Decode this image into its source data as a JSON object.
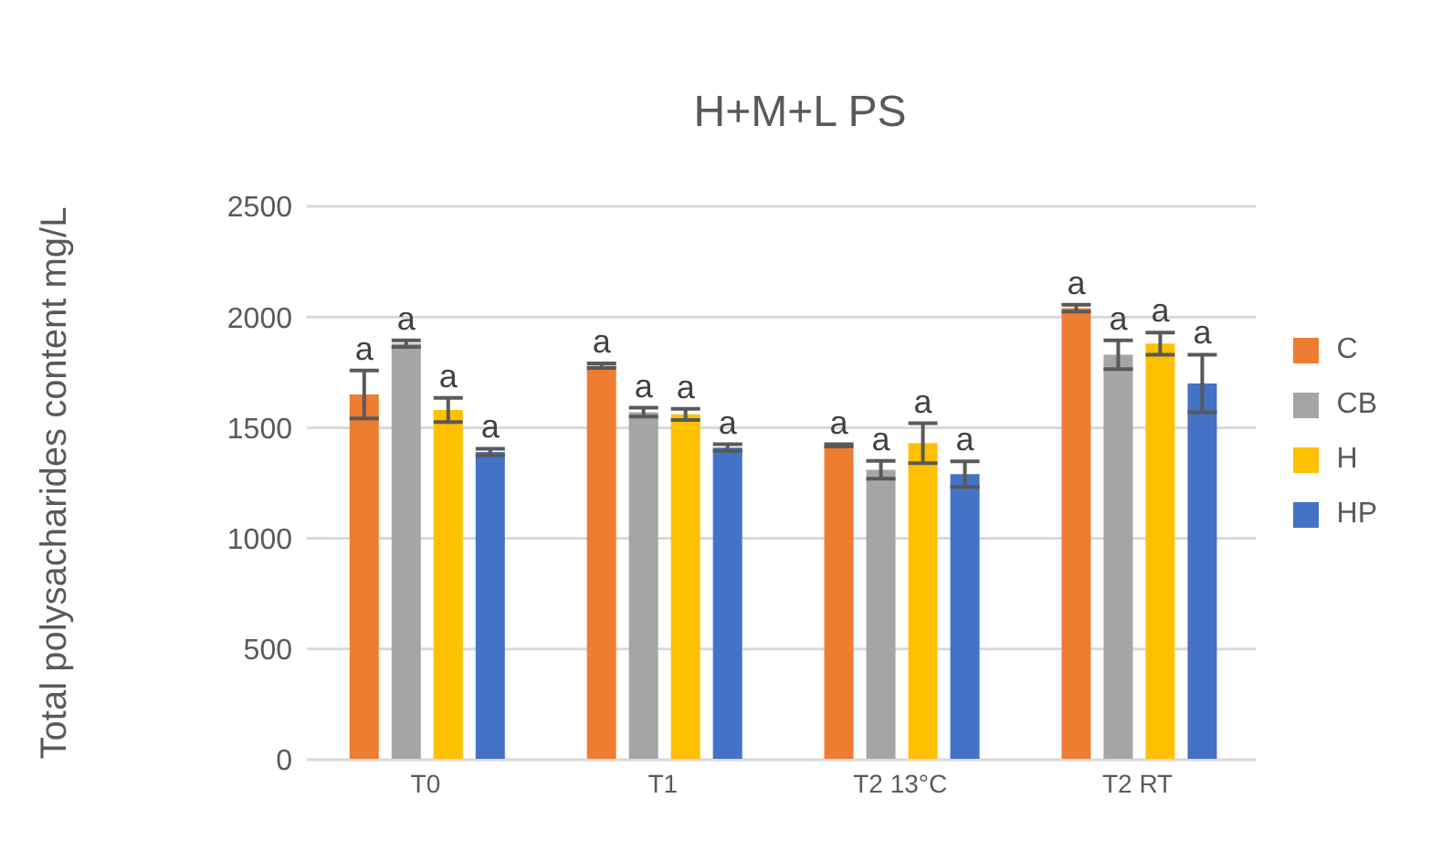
{
  "chart_data": {
    "type": "bar",
    "title": "H+M+L PS",
    "ylabel": "Total polysacharides content mg/L",
    "categories": [
      "T0",
      "T1",
      "T2 13°C",
      "T2 RT"
    ],
    "series": [
      {
        "name": "C",
        "color": "#ed7d31",
        "values": [
          1650,
          1780,
          1420,
          2040
        ],
        "errors": [
          108,
          10,
          5,
          15
        ],
        "value_labels": [
          "a",
          "a",
          "a",
          "a"
        ]
      },
      {
        "name": "CB",
        "color": "#a5a5a5",
        "values": [
          1880,
          1570,
          1310,
          1830
        ],
        "errors": [
          15,
          20,
          40,
          65
        ],
        "value_labels": [
          "a",
          "a",
          "a",
          "a"
        ]
      },
      {
        "name": "H",
        "color": "#ffc000",
        "values": [
          1580,
          1560,
          1430,
          1880
        ],
        "errors": [
          55,
          25,
          90,
          50
        ],
        "value_labels": [
          "a",
          "a",
          "a",
          "a"
        ]
      },
      {
        "name": "HP",
        "color": "#4472c4",
        "values": [
          1390,
          1410,
          1290,
          1700
        ],
        "errors": [
          15,
          15,
          58,
          130
        ],
        "value_labels": [
          "a",
          "a",
          "a",
          "a"
        ]
      }
    ],
    "ylim": [
      0,
      2500
    ],
    "yticks": [
      0,
      500,
      1000,
      1500,
      2000,
      2500
    ],
    "grid": "y",
    "legend": "right"
  }
}
